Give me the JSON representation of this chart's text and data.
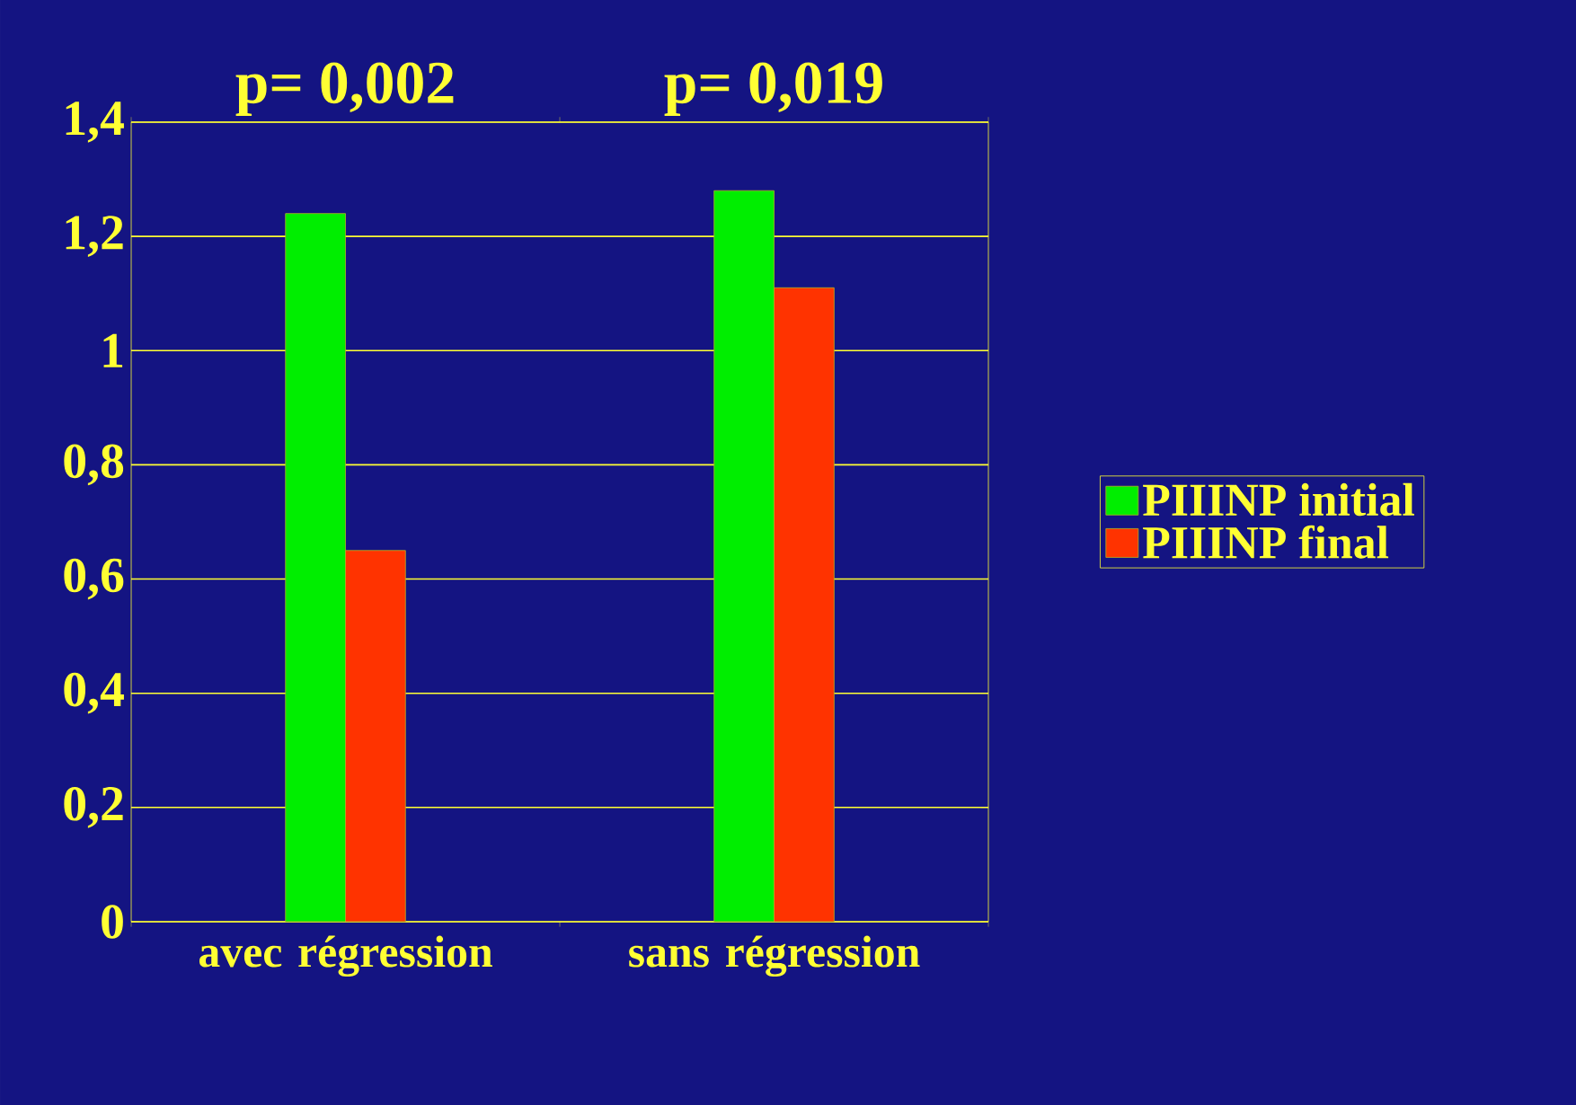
{
  "chart_data": {
    "type": "bar",
    "categories": [
      "avec régression",
      "sans régression"
    ],
    "series": [
      {
        "name": "PIIINP initial",
        "color": "#00ee00",
        "values": [
          1.24,
          1.28
        ]
      },
      {
        "name": "PIIINP final",
        "color": "#ff3300",
        "values": [
          0.65,
          1.11
        ]
      }
    ],
    "ylim": [
      0,
      1.4
    ],
    "yticks": [
      0,
      {
        "value": 0.2,
        "label": "0,2"
      },
      {
        "value": 0.4,
        "label": "0,4"
      },
      {
        "value": 0.6,
        "label": "0,6"
      },
      {
        "value": 0.8,
        "label": "0,8"
      },
      1,
      {
        "value": 1.2,
        "label": "1,2"
      },
      {
        "value": 1.4,
        "label": "1,4"
      }
    ],
    "grid": "y",
    "legend": "right",
    "annotations": [
      "p= 0,002",
      "p= 0,019"
    ]
  }
}
